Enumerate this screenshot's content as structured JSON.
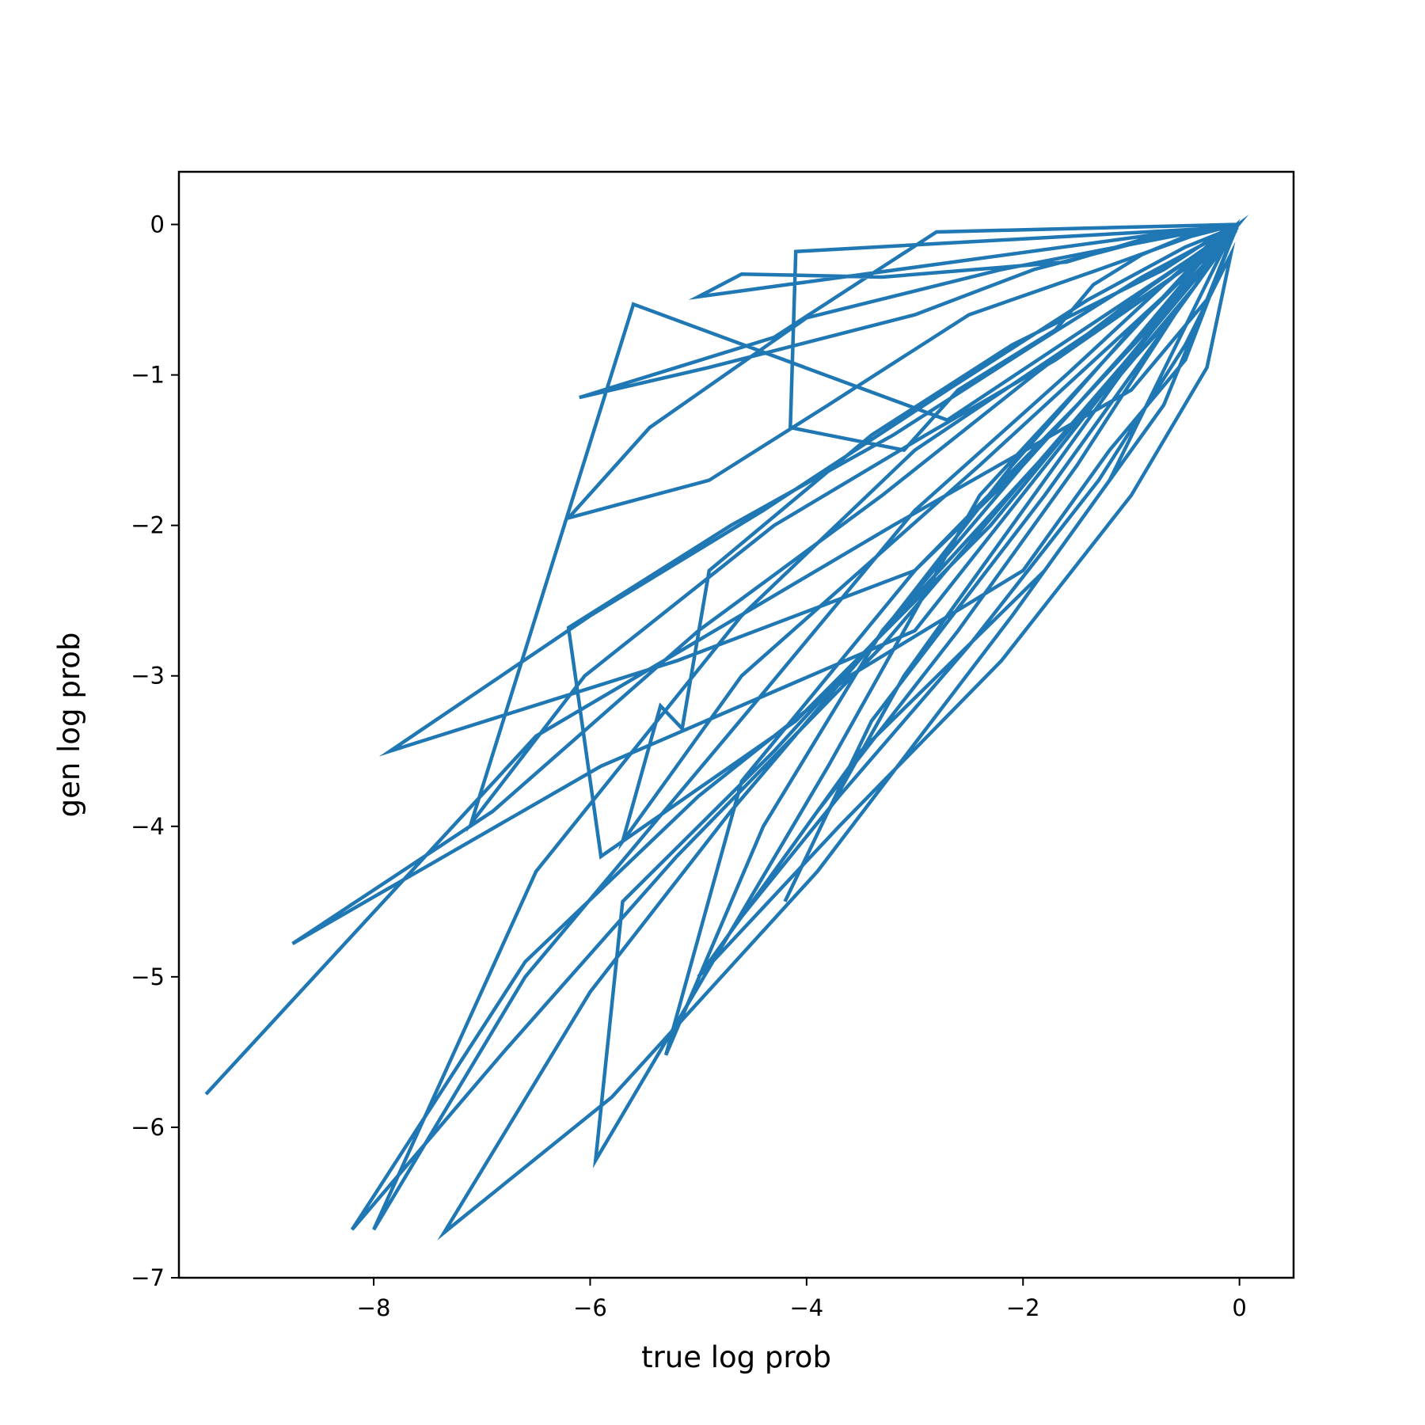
{
  "chart_data": {
    "type": "line",
    "title": "",
    "xlabel": "true log prob",
    "ylabel": "gen log prob",
    "xlim": [
      -9.8,
      0.5
    ],
    "ylim": [
      -7.0,
      0.35
    ],
    "xticks": [
      -8,
      -6,
      -4,
      -2,
      0
    ],
    "yticks": [
      0,
      -1,
      -2,
      -3,
      -4,
      -5,
      -6,
      -7
    ],
    "xtick_labels": [
      "−8",
      "−6",
      "−4",
      "−2",
      "0"
    ],
    "ytick_labels": [
      "0",
      "−1",
      "−2",
      "−3",
      "−4",
      "−5",
      "−6",
      "−7"
    ],
    "grid": false,
    "legend": null,
    "series": [
      {
        "color": "#1f77b4",
        "x": [
          -9.55,
          -6.5,
          -3.2,
          -1.0,
          -0.3,
          -0.05,
          -2.4,
          -4.6,
          -5.7,
          -5.35,
          -5.15,
          -4.9,
          -3.4,
          -2.1,
          -0.7,
          -0.1,
          -4.1,
          -4.15,
          -3.1,
          -2.6,
          -1.7,
          -1.35,
          -0.9,
          -0.4,
          -0.02,
          -2.8,
          -4.3,
          -6.1,
          -4.9,
          -3.0,
          -1.9,
          -1.1,
          -0.5,
          -5.0,
          -4.6,
          -3.3,
          -1.6,
          -0.9,
          -0.2,
          -2.2,
          -4.0,
          -5.45,
          -6.2,
          -4.9,
          -3.8,
          -2.5,
          -1.3,
          -0.45,
          -0.02,
          -0.5,
          -1.2,
          -2.0,
          -3.6,
          -5.0,
          -6.6,
          -8.2,
          -6.8,
          -5.2,
          -3.3,
          -2.0,
          -0.8,
          -0.1,
          -3.0,
          -4.6,
          -6.5,
          -8.0,
          -6.6,
          -4.5,
          -3.0,
          -1.6,
          -0.7,
          -0.15,
          -2.4,
          -3.8,
          -5.95,
          -5.7,
          -4.3,
          -2.9,
          -1.5,
          -0.6,
          -0.05,
          -1.8,
          -3.4,
          -4.2,
          -3.8,
          -3.1,
          -1.9,
          -1.1,
          -0.4,
          -0.02,
          -2.0,
          -3.0,
          -4.6,
          -5.3,
          -4.4,
          -3.3,
          -2.0,
          -1.0,
          -0.3,
          -0.05,
          -1.2,
          -2.1,
          -3.9,
          -5.8,
          -7.35,
          -6.0,
          -4.7,
          -3.4,
          -2.1,
          -1.0,
          -0.3,
          -0.02,
          -2.7,
          -5.6,
          -7.1,
          -6.05,
          -4.3,
          -2.9,
          -1.7,
          -0.7,
          -0.1,
          -0.3,
          -1.5,
          -3.0,
          -5.2,
          -7.85,
          -6.0,
          -4.4,
          -2.7,
          -1.4,
          -0.5,
          -0.05,
          -3.0,
          -5.9,
          -8.75,
          -6.9,
          -5.0,
          -3.3,
          -1.9,
          -0.8,
          -0.2,
          -0.01,
          -2.3,
          -4.1,
          -5.9,
          -6.2,
          -4.7,
          -3.2,
          -1.9,
          -0.9,
          -0.25,
          -0.02,
          -0.7,
          -1.8,
          -3.5,
          -4.6,
          -3.7,
          -2.5,
          -1.3,
          -0.5,
          -0.08,
          -0.3,
          -1.0,
          -2.2,
          -3.7,
          -5.0,
          -3.9,
          -2.6,
          -1.5,
          -0.6,
          -0.05
        ],
        "y": [
          -5.78,
          -3.4,
          -2.0,
          -1.1,
          -0.5,
          -0.05,
          -1.6,
          -3.0,
          -4.1,
          -3.2,
          -3.35,
          -2.3,
          -1.4,
          -0.8,
          -0.3,
          -0.02,
          -0.18,
          -1.35,
          -1.5,
          -1.1,
          -0.7,
          -0.4,
          -0.2,
          -0.05,
          0.0,
          -0.05,
          -0.75,
          -1.15,
          -0.95,
          -0.6,
          -0.3,
          -0.15,
          -0.04,
          -0.48,
          -0.33,
          -0.35,
          -0.25,
          -0.1,
          -0.02,
          -0.3,
          -0.62,
          -1.35,
          -1.95,
          -1.7,
          -1.2,
          -0.6,
          -0.3,
          -0.08,
          0.0,
          -0.9,
          -1.5,
          -2.3,
          -3.0,
          -3.8,
          -4.9,
          -6.68,
          -5.5,
          -4.2,
          -2.8,
          -1.7,
          -0.7,
          -0.1,
          -1.5,
          -2.6,
          -4.3,
          -6.68,
          -5.0,
          -3.2,
          -1.9,
          -1.0,
          -0.4,
          -0.05,
          -1.8,
          -3.6,
          -6.22,
          -4.5,
          -3.5,
          -2.4,
          -1.3,
          -0.6,
          -0.05,
          -1.8,
          -3.3,
          -4.5,
          -3.9,
          -3.0,
          -1.8,
          -1.0,
          -0.4,
          -0.02,
          -1.6,
          -2.3,
          -3.7,
          -5.52,
          -4.0,
          -2.7,
          -1.6,
          -0.8,
          -0.2,
          -0.02,
          -1.7,
          -2.6,
          -4.3,
          -5.8,
          -6.7,
          -5.1,
          -3.9,
          -2.8,
          -1.6,
          -0.7,
          -0.2,
          -0.02,
          -1.3,
          -0.53,
          -3.98,
          -3.0,
          -2.0,
          -1.4,
          -0.9,
          -0.4,
          -0.05,
          -0.28,
          -1.2,
          -2.3,
          -2.9,
          -3.5,
          -2.6,
          -1.9,
          -1.1,
          -0.5,
          -0.15,
          -0.02,
          -2.7,
          -3.6,
          -4.78,
          -3.9,
          -2.7,
          -1.8,
          -1.0,
          -0.4,
          -0.1,
          0.0,
          -2.0,
          -3.3,
          -4.2,
          -2.68,
          -2.0,
          -1.4,
          -0.8,
          -0.35,
          -0.1,
          -0.01,
          -1.2,
          -2.3,
          -3.5,
          -4.6,
          -3.8,
          -2.8,
          -1.7,
          -0.8,
          -0.2,
          -0.95,
          -1.8,
          -2.9,
          -4.0,
          -5.0,
          -3.9,
          -2.7,
          -1.6,
          -0.6,
          -0.04
        ]
      }
    ]
  }
}
